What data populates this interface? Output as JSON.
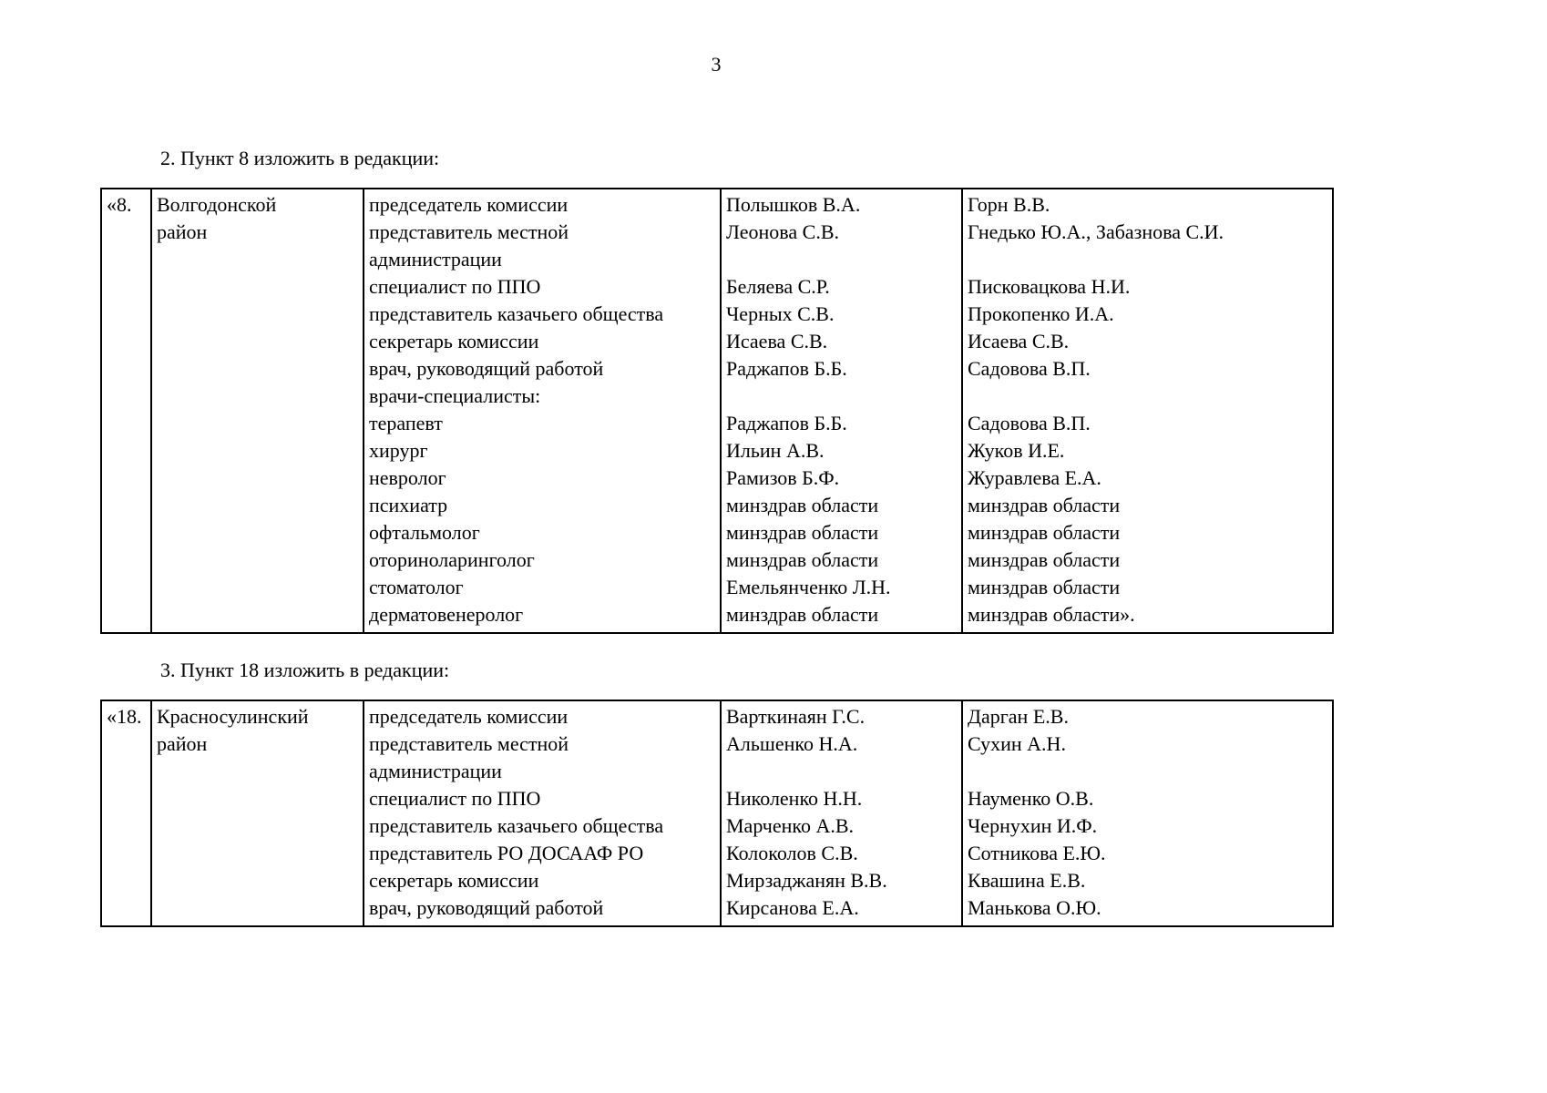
{
  "page": {
    "number": "3",
    "section2_heading": "2. Пункт 8 изложить в редакции:",
    "section3_heading": "3. Пункт 18 изложить в редакции:"
  },
  "table1": {
    "index": "«8.",
    "region_lines": [
      "Волгодонской",
      "район"
    ],
    "rows": [
      {
        "role": "председатель комиссии",
        "name1": "Полышков В.А.",
        "name2": "Горн В.В."
      },
      {
        "role": "представитель местной",
        "name1": "Леонова С.В.",
        "name2": "Гнедько Ю.А., Забазнова С.И."
      },
      {
        "role": "администрации",
        "name1": "",
        "name2": ""
      },
      {
        "role": "специалист по ППО",
        "name1": "Беляева С.Р.",
        "name2": "Писковацкова Н.И."
      },
      {
        "role": "представитель казачьего общества",
        "name1": "Черных С.В.",
        "name2": "Прокопенко И.А."
      },
      {
        "role": "секретарь комиссии",
        "name1": "Исаева С.В.",
        "name2": "Исаева С.В."
      },
      {
        "role": "врач, руководящий работой",
        "name1": "Раджапов Б.Б.",
        "name2": "Садовова В.П."
      },
      {
        "role": "врачи-специалисты:",
        "name1": "",
        "name2": ""
      },
      {
        "role": "терапевт",
        "name1": "Раджапов Б.Б.",
        "name2": "Садовова В.П."
      },
      {
        "role": "хирург",
        "name1": "Ильин А.В.",
        "name2": "Жуков И.Е."
      },
      {
        "role": "невролог",
        "name1": "Рамизов Б.Ф.",
        "name2": "Журавлева Е.А."
      },
      {
        "role": "психиатр",
        "name1": "минздрав области",
        "name2": "минздрав области"
      },
      {
        "role": "офтальмолог",
        "name1": "минздрав области",
        "name2": "минздрав области"
      },
      {
        "role": "оториноларинголог",
        "name1": "минздрав области",
        "name2": "минздрав области"
      },
      {
        "role": "стоматолог",
        "name1": "Емельянченко Л.Н.",
        "name2": "минздрав области"
      },
      {
        "role": "дерматовенеролог",
        "name1": "минздрав области",
        "name2": "минздрав области»."
      }
    ]
  },
  "table2": {
    "index": "«18.",
    "region_lines": [
      "Красносулинский",
      "район"
    ],
    "rows": [
      {
        "role": "председатель комиссии",
        "name1": "Варткинаян Г.С.",
        "name2": "Дарган Е.В."
      },
      {
        "role": "представитель местной",
        "name1": "Альшенко Н.А.",
        "name2": "Сухин А.Н."
      },
      {
        "role": "администрации",
        "name1": "",
        "name2": ""
      },
      {
        "role": "специалист по ППО",
        "name1": "Николенко Н.Н.",
        "name2": "Науменко О.В."
      },
      {
        "role": "представитель казачьего общества",
        "name1": "Марченко А.В.",
        "name2": "Чернухин И.Ф."
      },
      {
        "role": "представитель РО ДОСААФ РО",
        "name1": "Колоколов С.В.",
        "name2": "Сотникова Е.Ю."
      },
      {
        "role": "секретарь комиссии",
        "name1": "Мирзаджанян В.В.",
        "name2": "Квашина Е.В."
      },
      {
        "role": "врач, руководящий работой",
        "name1": "Кирсанова Е.А.",
        "name2": "Манькова О.Ю."
      }
    ]
  }
}
